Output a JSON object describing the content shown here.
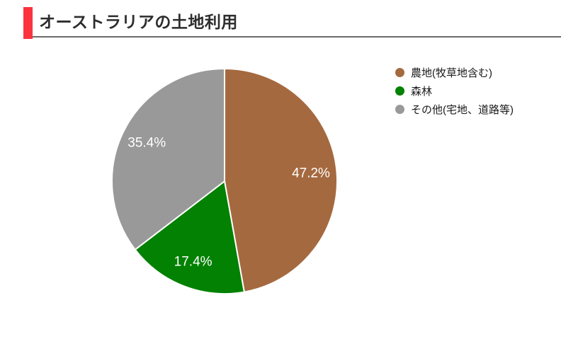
{
  "header": {
    "title": "オーストラリアの土地利用",
    "accent_color": "#fa333e",
    "underline_color": "#6b6b6b"
  },
  "chart_data": {
    "type": "pie",
    "title": "オーストラリアの土地利用",
    "categories": [
      "農地(牧草地含む)",
      "森林",
      "その他(宅地、道路等)"
    ],
    "values": [
      47.2,
      17.4,
      35.4
    ],
    "data_labels": [
      "47.2%",
      "17.4%",
      "35.4%"
    ],
    "colors": [
      "#a5693f",
      "#028102",
      "#999999"
    ],
    "start_angle_deg": 0,
    "direction": "clockwise",
    "slice_border_color": "#ffffff",
    "label_color": "#ffffff",
    "legend_position": "right"
  },
  "legend": {
    "items": [
      {
        "label": "農地(牧草地含む)",
        "color": "#a5693f"
      },
      {
        "label": "森林",
        "color": "#028102"
      },
      {
        "label": "その他(宅地、道路等)",
        "color": "#999999"
      }
    ]
  }
}
